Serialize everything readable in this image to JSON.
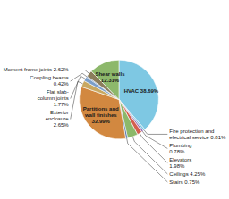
{
  "chart_data": {
    "type": "pie",
    "categories": [
      "HVAC 38.69%",
      "Fire protection and\nelectrical service 0.81%",
      "Plumbing\n0.78%",
      "Elevators\n1.98%",
      "Ceilings 4.25%",
      "Stairs 0.75%",
      "Partitions and\nwall finishes\n32.99%",
      "Exterior\nenclosure\n2.65%",
      "Flat slab-\ncolumn joints\n1.77%",
      "Coupling beams\n0.42%",
      "Moment frame joints 2.62%",
      "Shear walls\n12.31%"
    ],
    "values": [
      38.69,
      0.81,
      0.78,
      1.98,
      4.25,
      0.75,
      32.99,
      2.65,
      1.77,
      0.42,
      2.62,
      12.31
    ],
    "colors": [
      "#7EC8E3",
      "#7EC8E3",
      "#9B6DB5",
      "#D45F4E",
      "#8CB86A",
      "#4A6FA5",
      "#D28840",
      "#C8A862",
      "#7B9EC8",
      "#4A6FA5",
      "#8B7D5C",
      "#8DB86B"
    ]
  }
}
